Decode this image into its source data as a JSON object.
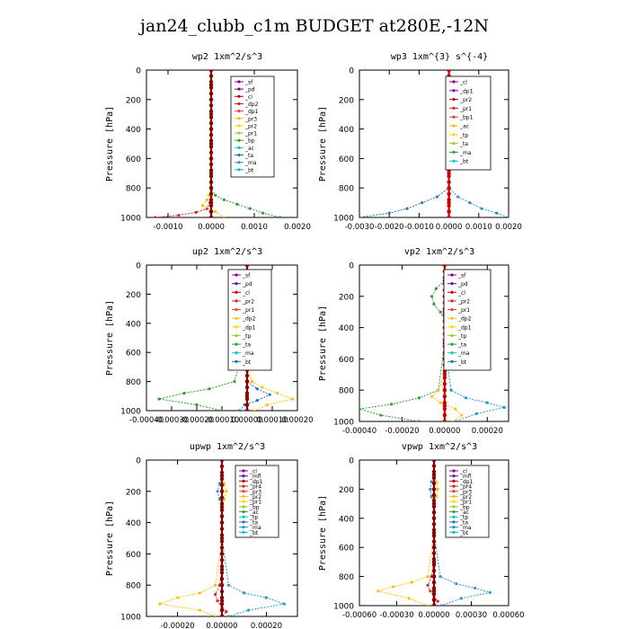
{
  "figure": {
    "title": "jan24_clubb_c1m  BUDGET at280E,-12N"
  },
  "chart_data": [
    {
      "type": "line",
      "title": "wp2  1xm^2/s^3",
      "ylabel": "Pressure [hPa]",
      "ylim": [
        1000,
        0
      ],
      "yticks": [
        "0",
        "200",
        "400",
        "600",
        "800",
        "1000"
      ],
      "xlim": [
        -0.0015,
        0.002
      ],
      "xticks": [
        "-0.0010",
        "0.0000",
        "0.0010",
        "0.0020"
      ],
      "xtick_values": [
        -0.001,
        0.0,
        0.001,
        0.002
      ],
      "legend": [
        "_sf",
        "_pd",
        "_cl",
        "_dp2",
        "_dp1",
        "_pr3",
        "_pr2",
        "_pr1",
        "_bp",
        "_ac",
        "_ta",
        "_ma",
        "_bt"
      ],
      "series": [
        {
          "name": "_dp1",
          "color": "#d62728",
          "x": [
            0,
            0,
            0,
            0,
            0,
            0,
            0,
            0,
            0,
            0,
            -3e-05,
            -0.0001,
            -0.00035,
            -0.00075,
            -0.0013
          ],
          "y": [
            0,
            100,
            200,
            300,
            400,
            500,
            600,
            700,
            800,
            850,
            900,
            940,
            965,
            985,
            1000
          ]
        },
        {
          "name": "_bp",
          "color": "#2ca02c",
          "x": [
            0,
            0,
            0,
            0,
            0,
            0,
            0,
            0,
            0,
            0.0001,
            0.0003,
            0.0006,
            0.0009,
            0.0012,
            0.0016
          ],
          "y": [
            0,
            100,
            200,
            300,
            400,
            500,
            600,
            700,
            800,
            850,
            880,
            910,
            940,
            970,
            1000
          ]
        },
        {
          "name": "_pr1",
          "color": "#ffbf00",
          "x": [
            0,
            0,
            0,
            0,
            0,
            0,
            0,
            0,
            0,
            -5e-05,
            -0.0001,
            -0.0002,
            0.0001,
            0.0003
          ],
          "y": [
            0,
            100,
            200,
            300,
            400,
            500,
            600,
            700,
            800,
            850,
            880,
            920,
            960,
            1000
          ]
        },
        {
          "name": "_cl",
          "color": "#8b0000",
          "x": [
            0,
            0,
            0,
            0,
            0,
            0,
            0,
            0,
            0,
            0,
            0,
            0
          ],
          "y": [
            0,
            100,
            200,
            300,
            400,
            500,
            600,
            700,
            800,
            900,
            960,
            1000
          ]
        }
      ]
    },
    {
      "type": "line",
      "title": "wp3  1xm^{3} s^{-4}",
      "ylabel": "Pressure [hPa]",
      "ylim": [
        1000,
        0
      ],
      "yticks": [
        "0",
        "200",
        "400",
        "600",
        "800",
        "1000"
      ],
      "xlim": [
        -0.003,
        0.002
      ],
      "xticks": [
        "-0.0030",
        "-0.0020",
        "-0.0010",
        "0.0000",
        "0.0010",
        "0.0020"
      ],
      "xtick_values": [
        -0.003,
        -0.002,
        -0.001,
        0.0,
        0.001,
        0.002
      ],
      "legend": [
        "_cl",
        "_dp1",
        "_pr2",
        "_pr1",
        "_bp1",
        "_ac",
        "_tp",
        "_ta",
        "_ma",
        "_bt"
      ],
      "series": [
        {
          "name": "_tp",
          "color": "#1f77b4",
          "x": [
            0,
            0,
            0,
            0,
            0,
            0,
            0,
            0,
            0,
            -0.0004,
            -0.0009,
            -0.0014,
            -0.002,
            -0.003
          ],
          "y": [
            0,
            100,
            200,
            300,
            400,
            500,
            600,
            700,
            800,
            860,
            900,
            940,
            970,
            1000
          ]
        },
        {
          "name": "_ac",
          "color": "#1f9ac9",
          "x": [
            0,
            0,
            0,
            0,
            0,
            0,
            0,
            0,
            0,
            0.0003,
            0.0007,
            0.0011,
            0.0016,
            0.002
          ],
          "y": [
            0,
            100,
            200,
            300,
            400,
            500,
            600,
            700,
            800,
            860,
            900,
            940,
            970,
            1000
          ]
        },
        {
          "name": "_cl",
          "color": "#cc0000",
          "x": [
            0,
            0,
            0,
            0,
            0,
            0,
            0,
            0,
            0,
            0,
            0,
            0
          ],
          "y": [
            0,
            100,
            200,
            300,
            400,
            500,
            600,
            700,
            800,
            900,
            960,
            1000
          ]
        }
      ]
    },
    {
      "type": "line",
      "title": "up2  1xm^2/s^3",
      "ylabel": "Pressure [hPa]",
      "ylim": [
        1000,
        0
      ],
      "yticks": [
        "0",
        "200",
        "400",
        "600",
        "800",
        "1000"
      ],
      "xlim": [
        -0.0004,
        0.0002
      ],
      "xticks": [
        "-0.00040",
        "-0.00030",
        "-0.00020",
        "-0.00010",
        "0.00000",
        "0.00010",
        "0.00020"
      ],
      "xtick_values": [
        -0.0004,
        -0.0003,
        -0.0002,
        -0.0001,
        0.0,
        0.0001,
        0.0002
      ],
      "legend": [
        "_sf",
        "_pd",
        "_cl",
        "_pr2",
        "_pr1",
        "_dp2",
        "_dp1",
        "_tp",
        "_ta",
        "_ma",
        "_bt"
      ],
      "series": [
        {
          "name": "_pr1",
          "color": "#2ca02c",
          "x": [
            0,
            0,
            -3e-05,
            -5e-05,
            -4e-05,
            -2e-05,
            0,
            0,
            -5e-05,
            -0.00015,
            -0.00025,
            -0.00035,
            -0.0002,
            -0.0001
          ],
          "y": [
            0,
            100,
            150,
            200,
            250,
            300,
            350,
            500,
            800,
            850,
            880,
            920,
            960,
            1000
          ]
        },
        {
          "name": "_pr2",
          "color": "#ffbf00",
          "x": [
            0,
            0,
            0,
            0,
            0,
            0,
            0,
            0,
            2e-05,
            6e-05,
            0.00012,
            0.00018,
            8e-05,
            3e-05
          ],
          "y": [
            0,
            100,
            200,
            300,
            400,
            500,
            600,
            700,
            800,
            840,
            880,
            920,
            960,
            1000
          ]
        },
        {
          "name": "_dp1",
          "color": "#1f77b4",
          "x": [
            0,
            0,
            0,
            0,
            0,
            0,
            0,
            0,
            0,
            4e-05,
            9e-05,
            4e-05,
            -1e-05,
            -3e-05
          ],
          "y": [
            0,
            100,
            200,
            300,
            400,
            500,
            600,
            700,
            800,
            850,
            890,
            930,
            960,
            1000
          ]
        },
        {
          "name": "_cl",
          "color": "#8b0000",
          "x": [
            0,
            0,
            0,
            0,
            0,
            0,
            0,
            0,
            0,
            0,
            0,
            0
          ],
          "y": [
            0,
            100,
            200,
            300,
            400,
            500,
            600,
            700,
            800,
            900,
            960,
            1000
          ]
        }
      ]
    },
    {
      "type": "line",
      "title": "vp2  1xm^2/s^3",
      "ylabel": "Pressure [hPa]",
      "ylim": [
        1000,
        0
      ],
      "yticks": [
        "0",
        "200",
        "400",
        "600",
        "800",
        "1000"
      ],
      "xlim": [
        -0.0004,
        0.0003
      ],
      "xticks": [
        "-0.00040",
        "-0.00020",
        "0.00000",
        "0.00020"
      ],
      "xtick_values": [
        -0.0004,
        -0.0002,
        0.0,
        0.0002
      ],
      "legend": [
        "_sf",
        "_pd",
        "_cl",
        "_pr2",
        "_pr1",
        "_dp2",
        "_dp1",
        "_tp",
        "_ta",
        "_ma",
        "_bt"
      ],
      "series": [
        {
          "name": "_pr1",
          "color": "#2ca02c",
          "x": [
            0,
            0,
            -4e-05,
            -6e-05,
            -5e-05,
            -2e-05,
            0,
            0,
            -3e-05,
            -0.00012,
            -0.00025,
            -0.0004,
            -0.0003,
            -0.00012
          ],
          "y": [
            0,
            100,
            150,
            200,
            250,
            300,
            350,
            500,
            800,
            850,
            890,
            920,
            960,
            1000
          ]
        },
        {
          "name": "_pr2",
          "color": "#ffbf00",
          "x": [
            0,
            0,
            0,
            0,
            0,
            0,
            0,
            0,
            -3e-05,
            -6e-05,
            -2e-05,
            5e-05,
            8e-05,
            4e-05
          ],
          "y": [
            0,
            100,
            200,
            300,
            400,
            500,
            600,
            700,
            800,
            840,
            880,
            920,
            960,
            1000
          ]
        },
        {
          "name": "_dp1",
          "color": "#1f9ac9",
          "x": [
            0,
            0,
            3e-05,
            5e-05,
            4e-05,
            2e-05,
            0,
            0,
            3e-05,
            0.0001,
            0.0002,
            0.00028,
            0.00015,
            5e-05
          ],
          "y": [
            0,
            100,
            150,
            200,
            250,
            300,
            350,
            500,
            800,
            850,
            880,
            910,
            950,
            1000
          ]
        },
        {
          "name": "_cl",
          "color": "#cc0000",
          "x": [
            0,
            0,
            0,
            0,
            0,
            0,
            0,
            0,
            0,
            0,
            0,
            0
          ],
          "y": [
            0,
            100,
            200,
            300,
            400,
            500,
            600,
            700,
            800,
            900,
            960,
            1000
          ]
        }
      ]
    },
    {
      "type": "line",
      "title": "upwp  1xm^2/s^3",
      "ylabel": "Pressure [hPa]",
      "ylim": [
        1000,
        0
      ],
      "yticks": [
        "0",
        "200",
        "400",
        "600",
        "800",
        "1000"
      ],
      "xlim": [
        -0.00034,
        0.00034
      ],
      "xticks": [
        "-0.00020",
        "0.00000",
        "0.00020"
      ],
      "xtick_values": [
        -0.0002,
        0.0,
        0.0002
      ],
      "legend": [
        "_cl",
        "_mfl",
        "_dp1",
        "_pr4",
        "_pr3",
        "_pr2",
        "_pr1",
        "_bp",
        "_ac",
        "_tp",
        "_ta",
        "_ma",
        "_bt"
      ],
      "series": [
        {
          "name": "_pr1",
          "color": "#ffbf00",
          "x": [
            0,
            0,
            1e-05,
            2e-05,
            1e-05,
            0,
            0,
            0,
            -3e-05,
            -0.0001,
            -0.0002,
            -0.00028,
            -0.0001,
            -3e-05
          ],
          "y": [
            0,
            100,
            150,
            200,
            250,
            300,
            350,
            500,
            800,
            850,
            880,
            920,
            960,
            1000
          ]
        },
        {
          "name": "_bp",
          "color": "#1f9ac9",
          "x": [
            0,
            0,
            -1e-05,
            -2e-05,
            -1e-05,
            0,
            0,
            0,
            3e-05,
            0.0001,
            0.0002,
            0.00028,
            0.00012,
            3e-05
          ],
          "y": [
            0,
            100,
            150,
            200,
            250,
            300,
            350,
            500,
            800,
            850,
            880,
            920,
            960,
            1000
          ]
        },
        {
          "name": "_dp1",
          "color": "#d62728",
          "x": [
            0,
            0,
            0,
            0,
            0,
            0,
            0,
            0,
            -1e-05,
            -3e-05,
            -2e-05,
            0,
            2e-05,
            0
          ],
          "y": [
            0,
            100,
            200,
            300,
            400,
            500,
            600,
            700,
            800,
            860,
            900,
            940,
            970,
            1000
          ]
        },
        {
          "name": "_cl",
          "color": "#8b0000",
          "x": [
            0,
            0,
            0,
            0,
            0,
            0,
            0,
            0,
            0,
            0,
            0,
            0
          ],
          "y": [
            0,
            100,
            200,
            300,
            400,
            500,
            600,
            700,
            800,
            900,
            960,
            1000
          ]
        }
      ]
    },
    {
      "type": "line",
      "title": "vpwp  1xm^2/s^3",
      "ylabel": "Pressure [hPa]",
      "ylim": [
        1000,
        0
      ],
      "yticks": [
        "0",
        "200",
        "400",
        "600",
        "800",
        "1000"
      ],
      "xlim": [
        -0.0006,
        0.0006
      ],
      "xticks": [
        "-0.00060",
        "-0.00030",
        "0.00000",
        "0.00030",
        "0.00060"
      ],
      "xtick_values": [
        -0.0006,
        -0.0003,
        0.0,
        0.0003,
        0.0006
      ],
      "legend": [
        "_cl",
        "_mfl",
        "_dp1",
        "_pr4",
        "_pr3",
        "_pr2",
        "_pr1",
        "_bp",
        "_ac",
        "_tp",
        "_ta",
        "_ma",
        "_bt"
      ],
      "series": [
        {
          "name": "_pr1",
          "color": "#ffbf00",
          "x": [
            0,
            0,
            2e-05,
            3e-05,
            2e-05,
            0,
            0,
            0,
            -5e-05,
            -0.00018,
            -0.00033,
            -0.00045,
            -0.0002,
            -5e-05
          ],
          "y": [
            0,
            100,
            150,
            200,
            250,
            300,
            350,
            500,
            800,
            840,
            870,
            900,
            950,
            1000
          ]
        },
        {
          "name": "_bp",
          "color": "#1f9ac9",
          "x": [
            0,
            0,
            -2e-05,
            -3e-05,
            -2e-05,
            0,
            0,
            0,
            5e-05,
            0.00018,
            0.00033,
            0.00045,
            0.00022,
            6e-05
          ],
          "y": [
            0,
            100,
            150,
            200,
            250,
            300,
            350,
            500,
            800,
            850,
            880,
            910,
            950,
            1000
          ]
        },
        {
          "name": "_dp1",
          "color": "#d62728",
          "x": [
            0,
            0,
            0,
            0,
            0,
            0,
            0,
            0,
            -2e-05,
            -5e-05,
            -3e-05,
            0,
            3e-05,
            0
          ],
          "y": [
            0,
            100,
            200,
            300,
            400,
            500,
            600,
            700,
            800,
            860,
            900,
            940,
            970,
            1000
          ]
        },
        {
          "name": "_cl",
          "color": "#8b0000",
          "x": [
            0,
            0,
            0,
            0,
            0,
            0,
            0,
            0,
            0,
            0,
            0,
            0
          ],
          "y": [
            0,
            100,
            200,
            300,
            400,
            500,
            600,
            700,
            800,
            900,
            960,
            1000
          ]
        }
      ]
    }
  ]
}
